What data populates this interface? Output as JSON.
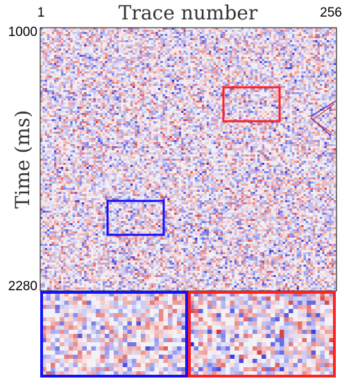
{
  "chart_data": {
    "type": "heatmap",
    "title": "",
    "xlabel": "Trace number",
    "ylabel": "Time (ms)",
    "x_tick_labels": [
      "1",
      "256"
    ],
    "y_tick_labels": [
      "1000",
      "2280"
    ],
    "xlim": [
      1,
      256
    ],
    "ylim": [
      1000,
      2280
    ],
    "colormap": [
      "#2b2bd6",
      "#ffffff",
      "#e03a3a"
    ],
    "description_of_values": "noise-dominated seismic amplitudes (diverging blue-white-red)",
    "highlight_boxes": [
      {
        "name": "red-box",
        "color": "#ff2020",
        "trace_range": [
          160,
          208
        ],
        "time_range": [
          1315,
          1435
        ]
      },
      {
        "name": "blue-box",
        "color": "#1010ff",
        "trace_range": [
          60,
          108
        ],
        "time_range": [
          1840,
          1960
        ]
      }
    ],
    "insets": [
      {
        "name": "blue-zoom-inset",
        "color": "#1010ff",
        "source": "blue-box"
      },
      {
        "name": "red-zoom-inset",
        "color": "#ff2020",
        "source": "red-box"
      }
    ]
  }
}
